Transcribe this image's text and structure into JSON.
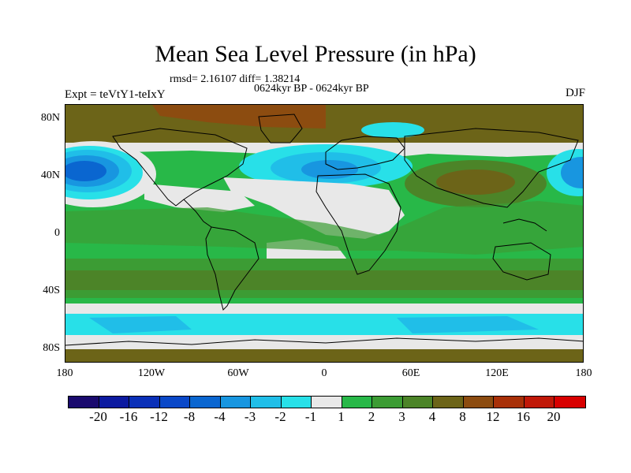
{
  "title": "Mean Sea Level Pressure (in hPa)",
  "stats": "rmsd= 2.16107 diff= 1.38214",
  "period": "0624kyr BP - 0624kyr BP",
  "expt": "Expt = teVtY1-teIxY",
  "season": "DJF",
  "y_ticks": [
    "80N",
    "40N",
    "0",
    "40S",
    "80S"
  ],
  "x_ticks": [
    "180",
    "120W",
    "60W",
    "0",
    "60E",
    "120E",
    "180"
  ],
  "colorbar": {
    "labels": [
      "-20",
      "-16",
      "-12",
      "-8",
      "-4",
      "-3",
      "-2",
      "-1",
      "1",
      "2",
      "3",
      "4",
      "8",
      "12",
      "16",
      "20"
    ],
    "colors": [
      "#1a0a6e",
      "#0c1aa0",
      "#0a30b8",
      "#0a48c8",
      "#0a66d0",
      "#1896e0",
      "#20bee8",
      "#28e0e8",
      "#e8e8e8",
      "#28b848",
      "#3c9c34",
      "#4c8428",
      "#6c6418",
      "#8c4c10",
      "#a83008",
      "#c01808",
      "#d80000"
    ]
  }
}
